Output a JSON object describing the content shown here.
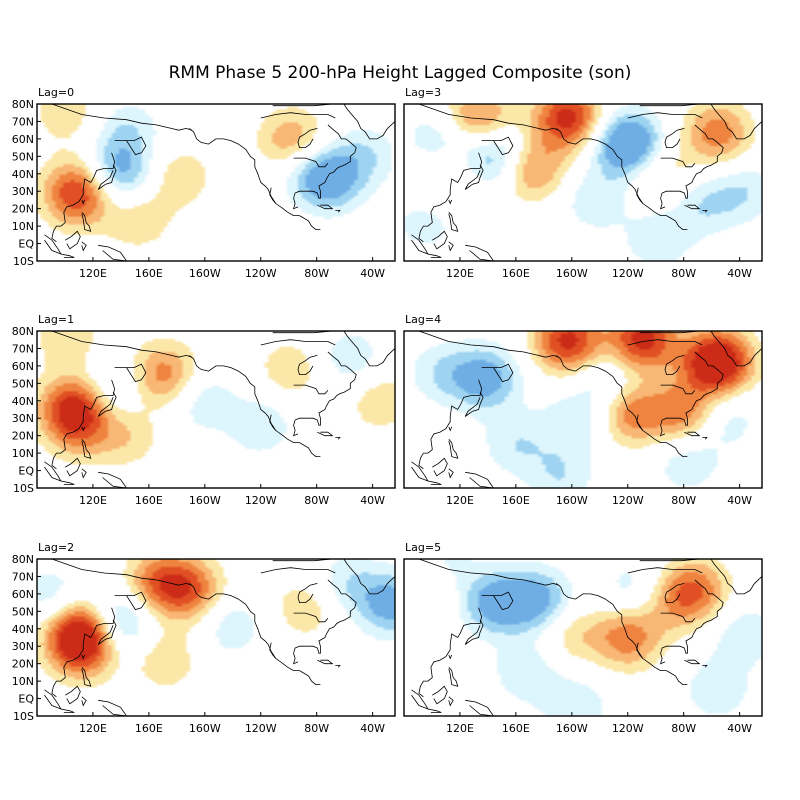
{
  "figure": {
    "title": "RMM Phase 5 200-hPa Height Lagged Composite (son)",
    "lat_ticks": [
      "80N",
      "70N",
      "60N",
      "50N",
      "40N",
      "30N",
      "20N",
      "10N",
      "EQ",
      "10S"
    ],
    "lon_ticks": [
      "120E",
      "160E",
      "160W",
      "120W",
      "80W",
      "40W"
    ],
    "panels": [
      {
        "id": "lag0",
        "label": "Lag=0",
        "anomalies": [
          {
            "lon": 117,
            "lat": 31,
            "sign": 1,
            "level": 2
          },
          {
            "lon": 118,
            "lat": 25,
            "sign": 1,
            "level": 1
          },
          {
            "lon": 158,
            "lat": 14,
            "sign": 1,
            "level": 1
          },
          {
            "lon": 145,
            "lat": 40,
            "sign": -1,
            "level": 2
          },
          {
            "lon": 185,
            "lat": 38,
            "sign": 1,
            "level": 1
          },
          {
            "lon": 262,
            "lat": 58,
            "sign": 1,
            "level": 2
          },
          {
            "lon": 285,
            "lat": 36,
            "sign": -1,
            "level": 2
          },
          {
            "lon": 270,
            "lat": 47,
            "sign": -1,
            "level": 1
          },
          {
            "lon": 310,
            "lat": 50,
            "sign": -1,
            "level": 1
          },
          {
            "lon": 150,
            "lat": 65,
            "sign": -1,
            "level": 1
          },
          {
            "lon": 110,
            "lat": 76,
            "sign": 1,
            "level": 1
          }
        ]
      },
      {
        "id": "lag1",
        "label": "Lag=1",
        "anomalies": [
          {
            "lon": 115,
            "lat": 36,
            "sign": 1,
            "level": 3
          },
          {
            "lon": 118,
            "lat": 22,
            "sign": 1,
            "level": 1
          },
          {
            "lon": 150,
            "lat": 20,
            "sign": 1,
            "level": 1
          },
          {
            "lon": 175,
            "lat": 55,
            "sign": 1,
            "level": 2
          },
          {
            "lon": 140,
            "lat": 46,
            "sign": -1,
            "level": 1
          },
          {
            "lon": 260,
            "lat": 58,
            "sign": 1,
            "level": 1
          },
          {
            "lon": 320,
            "lat": 40,
            "sign": 1,
            "level": 1
          },
          {
            "lon": 300,
            "lat": 64,
            "sign": -1,
            "level": 1
          },
          {
            "lon": 200,
            "lat": 40,
            "sign": -1,
            "level": 1
          },
          {
            "lon": 240,
            "lat": 26,
            "sign": -1,
            "level": 1
          },
          {
            "lon": 110,
            "lat": 77,
            "sign": 1,
            "level": 1
          }
        ]
      },
      {
        "id": "lag2",
        "label": "Lag=2",
        "anomalies": [
          {
            "lon": 120,
            "lat": 37,
            "sign": 1,
            "level": 4
          },
          {
            "lon": 120,
            "lat": 25,
            "sign": 1,
            "level": 1
          },
          {
            "lon": 172,
            "lat": 67,
            "sign": 1,
            "level": 2
          },
          {
            "lon": 193,
            "lat": 62,
            "sign": 1,
            "level": 2
          },
          {
            "lon": 143,
            "lat": 43,
            "sign": -1,
            "level": 2
          },
          {
            "lon": 176,
            "lat": 22,
            "sign": 1,
            "level": 1
          },
          {
            "lon": 328,
            "lat": 54,
            "sign": -1,
            "level": 2
          },
          {
            "lon": 298,
            "lat": 66,
            "sign": -1,
            "level": 1
          },
          {
            "lon": 270,
            "lat": 52,
            "sign": 1,
            "level": 1
          },
          {
            "lon": 100,
            "lat": 58,
            "sign": -1,
            "level": 1
          },
          {
            "lon": 220,
            "lat": 42,
            "sign": -1,
            "level": 1
          }
        ]
      },
      {
        "id": "lag3",
        "label": "Lag=3",
        "anomalies": [
          {
            "lon": 200,
            "lat": 72,
            "sign": 1,
            "level": 3
          },
          {
            "lon": 175,
            "lat": 43,
            "sign": 1,
            "level": 2
          },
          {
            "lon": 140,
            "lat": 72,
            "sign": 1,
            "level": 2
          },
          {
            "lon": 240,
            "lat": 57,
            "sign": -1,
            "level": 3
          },
          {
            "lon": 152,
            "lat": 50,
            "sign": -1,
            "level": 2
          },
          {
            "lon": 112,
            "lat": 60,
            "sign": -1,
            "level": 1
          },
          {
            "lon": 115,
            "lat": 33,
            "sign": 1,
            "level": 1
          },
          {
            "lon": 262,
            "lat": 40,
            "sign": 1,
            "level": 1
          },
          {
            "lon": 300,
            "lat": 63,
            "sign": 1,
            "level": 2
          },
          {
            "lon": 318,
            "lat": 30,
            "sign": -1,
            "level": 1
          },
          {
            "lon": 290,
            "lat": 22,
            "sign": -1,
            "level": 1
          },
          {
            "lon": 218,
            "lat": 25,
            "sign": -1,
            "level": 1
          },
          {
            "lon": 260,
            "lat": 2,
            "sign": -1,
            "level": 1
          },
          {
            "lon": 105,
            "lat": 14,
            "sign": -1,
            "level": 1
          }
        ]
      },
      {
        "id": "lag4",
        "label": "Lag=4",
        "anomalies": [
          {
            "lon": 300,
            "lat": 62,
            "sign": 1,
            "level": 4
          },
          {
            "lon": 250,
            "lat": 75,
            "sign": 1,
            "level": 3
          },
          {
            "lon": 200,
            "lat": 74,
            "sign": 1,
            "level": 3
          },
          {
            "lon": 145,
            "lat": 53,
            "sign": -1,
            "level": 2
          },
          {
            "lon": 115,
            "lat": 56,
            "sign": -1,
            "level": 1
          },
          {
            "lon": 225,
            "lat": 51,
            "sign": -1,
            "level": 1
          },
          {
            "lon": 242,
            "lat": 33,
            "sign": 1,
            "level": 2
          },
          {
            "lon": 278,
            "lat": 33,
            "sign": 1,
            "level": 2
          },
          {
            "lon": 305,
            "lat": 30,
            "sign": -1,
            "level": 1
          },
          {
            "lon": 205,
            "lat": 27,
            "sign": -1,
            "level": 1
          },
          {
            "lon": 165,
            "lat": 15,
            "sign": -1,
            "level": 1
          },
          {
            "lon": 195,
            "lat": -4,
            "sign": -1,
            "level": 1
          },
          {
            "lon": 280,
            "lat": 5,
            "sign": -1,
            "level": 1
          }
        ]
      },
      {
        "id": "lag5",
        "label": "Lag=5",
        "anomalies": [
          {
            "lon": 150,
            "lat": 55,
            "sign": -1,
            "level": 2
          },
          {
            "lon": 180,
            "lat": 56,
            "sign": -1,
            "level": 2
          },
          {
            "lon": 108,
            "lat": 64,
            "sign": 1,
            "level": 1
          },
          {
            "lon": 285,
            "lat": 62,
            "sign": 1,
            "level": 2
          },
          {
            "lon": 268,
            "lat": 55,
            "sign": 1,
            "level": 1
          },
          {
            "lon": 240,
            "lat": 35,
            "sign": 1,
            "level": 2
          },
          {
            "lon": 202,
            "lat": 37,
            "sign": 1,
            "level": 1
          },
          {
            "lon": 318,
            "lat": 37,
            "sign": -1,
            "level": 1
          },
          {
            "lon": 245,
            "lat": 62,
            "sign": -1,
            "level": 1
          },
          {
            "lon": 172,
            "lat": 15,
            "sign": -1,
            "level": 1
          },
          {
            "lon": 205,
            "lat": -4,
            "sign": -1,
            "level": 1
          },
          {
            "lon": 300,
            "lat": 5,
            "sign": -1,
            "level": 1
          },
          {
            "lon": 115,
            "lat": 75,
            "sign": -1,
            "level": 1
          }
        ]
      }
    ]
  },
  "colors": {
    "pos": [
      "#ffffff",
      "#fbe8a8",
      "#f8b774",
      "#ef8440",
      "#e05024",
      "#cc2b17"
    ],
    "neg": [
      "#ffffff",
      "#ddf5fd",
      "#9ed4f1",
      "#6faee5"
    ],
    "land": "#000000",
    "frame": "#000000"
  }
}
